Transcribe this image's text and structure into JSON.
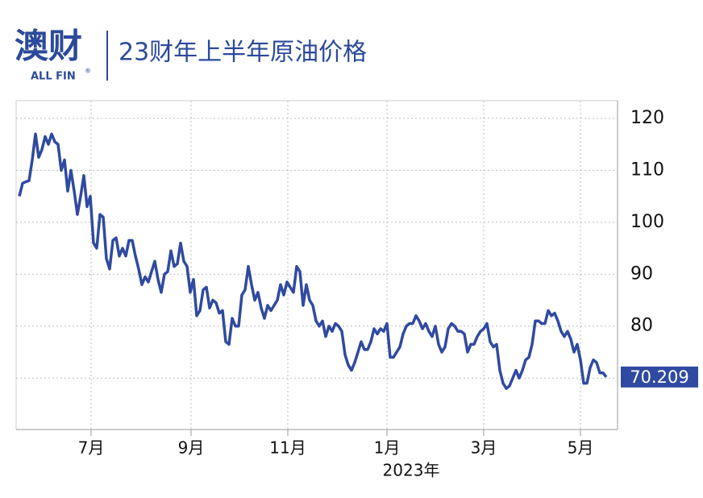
{
  "logo": {
    "name": "澳财",
    "sub": "ALL FIN",
    "mark": "®"
  },
  "chart_data": {
    "type": "line",
    "title": "23财年上半年原油价格",
    "year_label": "2023年",
    "series": [
      {
        "color": "#2f4aa0",
        "values": [
          105,
          107.5,
          107.8,
          108,
          112,
          117,
          112.5,
          114,
          116.5,
          115,
          117,
          115.5,
          115,
          110,
          112,
          106,
          110,
          106,
          101.5,
          105,
          109,
          103,
          105,
          96,
          95,
          101.5,
          101,
          93,
          91,
          96.5,
          97,
          93.5,
          95,
          93.5,
          96.5,
          96.5,
          93.5,
          91,
          88,
          89.5,
          88.5,
          90.5,
          92.5,
          89,
          86.5,
          90,
          90.5,
          94.5,
          91.5,
          92,
          96,
          92.5,
          91.5,
          86.5,
          89,
          82,
          83,
          87,
          87.5,
          83.5,
          85,
          84.5,
          82.5,
          83,
          77,
          76.5,
          81.5,
          80,
          80,
          86,
          87,
          91.5,
          88,
          85,
          86.5,
          83.5,
          81.5,
          84,
          83,
          84,
          85,
          88,
          86,
          88.5,
          87.5,
          86.5,
          91.5,
          90.5,
          84,
          88,
          85,
          84,
          81,
          80,
          81,
          78,
          80,
          79,
          80.5,
          80,
          79,
          74.5,
          72.5,
          71.5,
          73,
          75,
          77,
          75.5,
          75.5,
          77,
          79.5,
          78.5,
          79.5,
          79,
          80.5,
          74,
          74,
          75,
          76,
          78.5,
          80,
          80.5,
          80.5,
          82,
          81,
          79.5,
          80.5,
          79,
          78,
          80,
          76.5,
          75,
          76,
          79.5,
          80.5,
          80,
          79,
          79,
          78.5,
          75,
          76.5,
          76.5,
          78,
          79,
          79.5,
          80.5,
          77,
          76,
          76.5,
          71.5,
          69,
          68,
          68.5,
          70,
          71.5,
          70,
          71.5,
          73.5,
          74,
          76.5,
          81,
          81,
          80.5,
          80.5,
          83,
          82,
          82.5,
          81,
          79,
          78,
          79,
          77.5,
          75,
          76.5,
          73.5,
          69,
          69,
          72,
          73.5,
          73,
          71,
          71,
          70.209
        ]
      }
    ],
    "xlim": [
      -1,
      185.5
    ],
    "xticks": [
      {
        "value": 22.25,
        "label": "7月"
      },
      {
        "value": 53.25,
        "label": "9月"
      },
      {
        "value": 83.25,
        "label": "11月"
      },
      {
        "value": 114,
        "label": "1月"
      },
      {
        "value": 144,
        "label": "3月"
      },
      {
        "value": 174,
        "label": "5月"
      }
    ],
    "ylim": [
      60.1,
      123.4
    ],
    "yticks": [
      70,
      80,
      90,
      100,
      110,
      120
    ],
    "grid": true
  }
}
